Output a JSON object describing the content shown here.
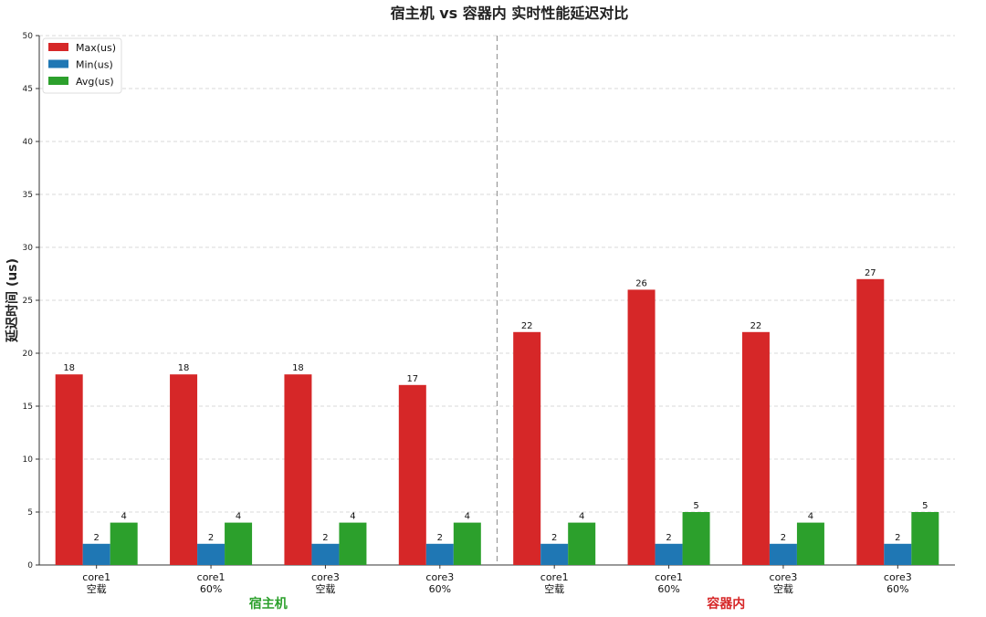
{
  "chart_data": {
    "type": "bar",
    "title": "宿主机 vs 容器内 实时性能延迟对比",
    "xlabel": "",
    "ylabel": "延迟时间 (us)",
    "ylim": [
      0,
      50
    ],
    "yticks": [
      0,
      5,
      10,
      15,
      20,
      25,
      30,
      35,
      40,
      45,
      50
    ],
    "grid": true,
    "legend": "top-left",
    "categories": [
      [
        "core1",
        "空载"
      ],
      [
        "core1",
        "60%"
      ],
      [
        "core3",
        "空载"
      ],
      [
        "core3",
        "60%"
      ],
      [
        "core1",
        "空载"
      ],
      [
        "core1",
        "60%"
      ],
      [
        "core3",
        "空载"
      ],
      [
        "core3",
        "60%"
      ]
    ],
    "series": [
      {
        "name": "Max(us)",
        "color": "#d62728",
        "values": [
          18,
          18,
          18,
          17,
          22,
          26,
          22,
          27
        ]
      },
      {
        "name": "Min(us)",
        "color": "#1f77b4",
        "values": [
          2,
          2,
          2,
          2,
          2,
          2,
          2,
          2
        ]
      },
      {
        "name": "Avg(us)",
        "color": "#2ca02c",
        "values": [
          4,
          4,
          4,
          4,
          4,
          5,
          4,
          5
        ]
      }
    ],
    "groups": [
      {
        "label": "宿主机",
        "color": "#2ca02c",
        "span": [
          0,
          3
        ]
      },
      {
        "label": "容器内",
        "color": "#d62728",
        "span": [
          4,
          7
        ]
      }
    ]
  }
}
